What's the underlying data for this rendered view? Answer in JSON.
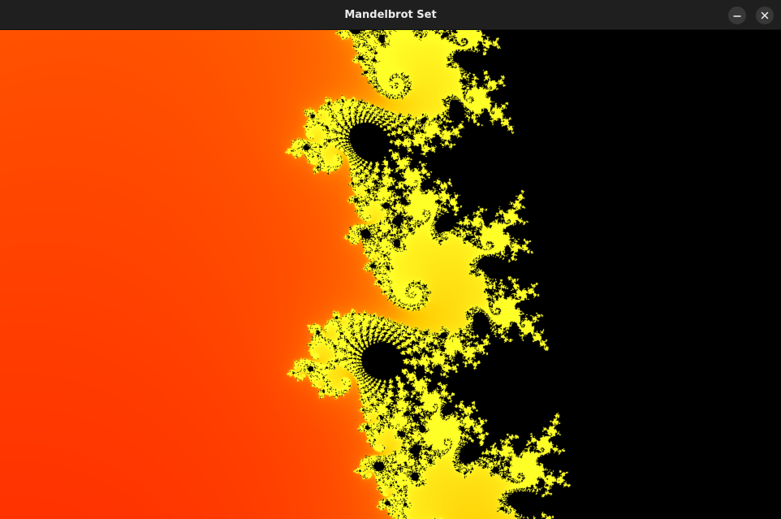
{
  "window": {
    "title": "Mandelbrot Set"
  },
  "titlebar_buttons": [
    {
      "name": "minimize",
      "icon": "minimize-icon"
    },
    {
      "name": "close",
      "icon": "close-icon"
    }
  ],
  "colors": {
    "titlebar_bg": "#1f1f1f",
    "button_bg": "#383838",
    "title_text": "#ececec",
    "palette_outer": "#3d0000",
    "palette_mid": "#ff2000",
    "palette_hot": "#ffe000",
    "set_interior": "#000000"
  }
}
